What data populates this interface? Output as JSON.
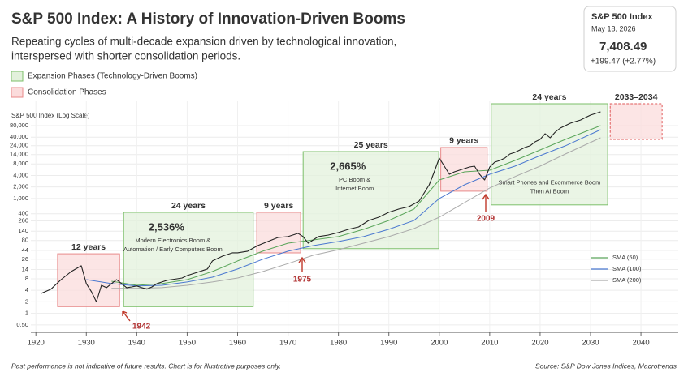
{
  "chart_data": {
    "type": "line",
    "title": "S&P 500 Index: A History of Innovation-Driven Booms",
    "subtitle": [
      "Repeating cycles of multi-decade expansion driven by technological innovation,",
      "interspersed with shorter consolidation periods."
    ],
    "quote": {
      "name": "S&P 500 Index",
      "date": "May 18, 2026",
      "price": "7,408.49",
      "change": "+199.47 (+2.77%)"
    },
    "legend": [
      {
        "name": "Expansion Phases (Technology-Driven Booms)",
        "color": "#e3f1dc",
        "stroke": "#7cbf6a"
      },
      {
        "name": "Consolidation Phases",
        "color": "#fbdcdc",
        "stroke": "#e88a8a"
      }
    ],
    "y_label": "S&P 500 Index (Log Scale)",
    "log_y": true,
    "grid": true,
    "xlim": [
      1919,
      2047.4
    ],
    "xticks": [
      1920,
      1930,
      1940,
      1950,
      1960,
      1970,
      1980,
      1990,
      2000,
      2010,
      2020,
      2030,
      2040
    ],
    "ylim": [
      0.32,
      345000
    ],
    "yticks": [
      {
        "value": 0.5,
        "label": "0.50"
      },
      1,
      2,
      4,
      8,
      14,
      26,
      44,
      80,
      140,
      260,
      400,
      {
        "value": 1000,
        "label": "1,000"
      },
      {
        "value": 2000,
        "label": "2,000"
      },
      {
        "value": 4000,
        "label": "4,000"
      },
      {
        "value": 8000,
        "label": "8,000"
      },
      {
        "value": 14000,
        "label": "14,000"
      },
      {
        "value": 24000,
        "label": "24,000"
      },
      {
        "value": 40000,
        "label": "40,000"
      },
      {
        "value": 80000,
        "label": "80,000"
      }
    ],
    "series": [
      {
        "color": "#222222",
        "x": [
          1921,
          1923,
          1925,
          1927,
          1929,
          1930,
          1931,
          1932,
          1933,
          1934,
          1935,
          1936,
          1937,
          1938,
          1939,
          1940,
          1941,
          1942,
          1943,
          1944,
          1945,
          1946,
          1948,
          1949,
          1950,
          1952,
          1954,
          1955,
          1957,
          1959,
          1960,
          1962,
          1964,
          1966,
          1968,
          1970,
          1972,
          1973,
          1974,
          1975,
          1976,
          1978,
          1980,
          1982,
          1984,
          1986,
          1988,
          1990,
          1992,
          1994,
          1996,
          1998,
          1999,
          2000,
          2001,
          2002,
          2003,
          2004,
          2005,
          2006,
          2007,
          2008,
          2009,
          2010,
          2011,
          2012,
          2013,
          2014,
          2015,
          2016,
          2017,
          2018,
          2019,
          2020,
          2021,
          2022,
          2023,
          2024,
          2025,
          2026,
          2027,
          2028,
          2029,
          2030,
          2031,
          2032
        ],
        "values": [
          3.3,
          4.3,
          7.6,
          12.4,
          17.5,
          6.0,
          3.7,
          2.0,
          5.4,
          4.7,
          6.0,
          7.6,
          6.0,
          4.7,
          4.9,
          5.2,
          4.7,
          4.3,
          4.9,
          6.0,
          6.6,
          7.3,
          8.0,
          8.4,
          9.7,
          11.8,
          14.4,
          23.4,
          31.3,
          38.1,
          38.1,
          42,
          59,
          75,
          96,
          101,
          123,
          101,
          68,
          83,
          101,
          111,
          129,
          157,
          181,
          267,
          325,
          436,
          530,
          612,
          861,
          2280,
          4980,
          11400,
          7000,
          4300,
          4980,
          5480,
          6050,
          6670,
          7000,
          4300,
          3050,
          6670,
          8930,
          9840,
          11400,
          14500,
          16000,
          18500,
          21500,
          23700,
          30200,
          34900,
          49100,
          38500,
          54200,
          69200,
          80000,
          92500,
          102000,
          112000,
          130000,
          151000,
          166000,
          183000
        ]
      },
      {
        "name": "SMA (50)",
        "color": "#5aa55a",
        "x": [
          1935,
          1940,
          1945,
          1950,
          1955,
          1960,
          1965,
          1970,
          1975,
          1980,
          1985,
          1990,
          1995,
          2000,
          2005,
          2010,
          2015,
          2020,
          2025,
          2032
        ],
        "values": [
          6.9,
          5.4,
          6.0,
          7.6,
          12.4,
          23.4,
          42,
          68,
          83,
          101,
          157,
          267,
          530,
          3050,
          4980,
          5480,
          9840,
          18500,
          34900,
          80000
        ]
      },
      {
        "name": "SMA (100)",
        "color": "#4a78d0",
        "x": [
          1930,
          1935,
          1940,
          1945,
          1950,
          1955,
          1960,
          1965,
          1970,
          1975,
          1980,
          1985,
          1990,
          1995,
          2000,
          2005,
          2010,
          2015,
          2020,
          2025,
          2032
        ],
        "values": [
          7.6,
          6.0,
          5.2,
          5.4,
          6.6,
          8.8,
          14.4,
          26,
          42,
          59,
          75,
          101,
          157,
          267,
          1000,
          2280,
          4300,
          7000,
          13200,
          23700,
          62700
        ]
      },
      {
        "name": "SMA (200)",
        "color": "#aaaaaa",
        "x": [
          1935,
          1940,
          1945,
          1950,
          1955,
          1960,
          1965,
          1970,
          1975,
          1980,
          1985,
          1990,
          1995,
          2000,
          2005,
          2010,
          2015,
          2020,
          2025,
          2032
        ],
        "values": [
          4.5,
          4.5,
          4.7,
          5.4,
          6.6,
          8.4,
          12.4,
          20,
          33,
          46,
          68,
          101,
          164,
          325,
          780,
          1880,
          3720,
          7000,
          14500,
          38500
        ]
      }
    ],
    "phases": [
      {
        "label": "12 years",
        "color": "#fbdcdc",
        "stroke": "#e88a8a",
        "label_color": "#c0392b",
        "x": [
          1924.3,
          1936.6
        ],
        "y": [
          1.5,
          36
        ]
      },
      {
        "label": "24 years",
        "growth": "2,536%",
        "description": [
          "Modern Electronics Boom &",
          "Automation / Early Computers Boom"
        ],
        "color": "#e3f1dc",
        "stroke": "#7cbf6a",
        "label_color": "#3a8a2e",
        "x": [
          1937.4,
          1963.1
        ],
        "y": [
          1.5,
          435
        ]
      },
      {
        "label": "9 years",
        "color": "#fbdcdc",
        "stroke": "#e88a8a",
        "label_color": "#c0392b",
        "x": [
          1963.8,
          1972.5
        ],
        "y": [
          38,
          435
        ]
      },
      {
        "label": "25 years",
        "growth": "2,665%",
        "description": [
          "PC Boom &",
          "Internet Boom"
        ],
        "color": "#e3f1dc",
        "stroke": "#7cbf6a",
        "label_color": "#3a8a2e",
        "x": [
          1973.0,
          1999.9
        ],
        "y": [
          49,
          16800
        ]
      },
      {
        "label": "9 years",
        "color": "#fbdcdc",
        "stroke": "#e88a8a",
        "label_color": "#c0392b",
        "x": [
          2000.3,
          2009.5
        ],
        "y": [
          1550,
          21500
        ]
      },
      {
        "label": "24 years",
        "description": [
          "Smart Phones and Ecommerce Boom",
          "Then AI Boom"
        ],
        "color": "#e3f1dc",
        "stroke": "#7cbf6a",
        "label_color": "#3a8a2e",
        "x": [
          2010.3,
          2033.4
        ],
        "y": [
          680,
          298000
        ]
      },
      {
        "label": "2033–2034",
        "dashed": true,
        "color": "#fbdcdc",
        "stroke": "#e05a5a",
        "label_color": "#c0392b",
        "x": [
          2033.9,
          2044.2
        ],
        "y": [
          35000,
          298000
        ]
      }
    ],
    "annotations": [
      "1942",
      "1975",
      "2009"
    ],
    "footnote": "Past performance is not indicative of future results. Chart is for illustrative purposes only.",
    "source": "Source: S&P Dow Jones Indices, Macrotrends"
  }
}
